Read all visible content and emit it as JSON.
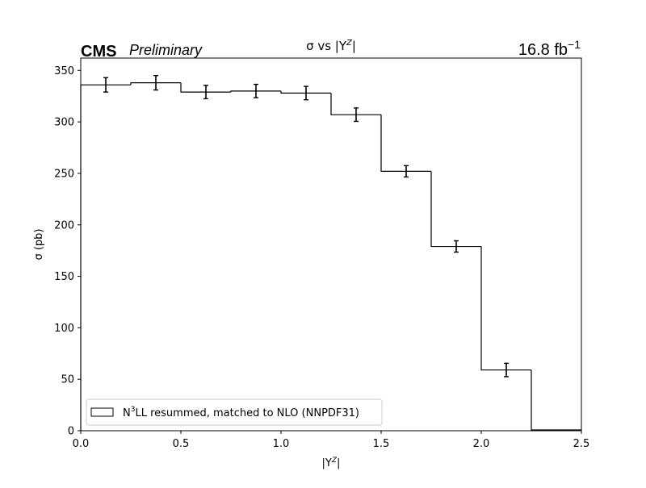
{
  "chart_data": {
    "type": "histogram",
    "header": {
      "experiment": "CMS",
      "status": "Preliminary",
      "luminosity_value": "16.8 fb",
      "luminosity_exponent": "−1"
    },
    "title": {
      "prefix": "σ vs |Y",
      "superscript": "Z",
      "suffix": "|"
    },
    "xlabel": {
      "prefix": "|Y",
      "superscript": "Z",
      "suffix": "|"
    },
    "ylabel": "σ (pb)",
    "xlim": [
      0,
      2.5
    ],
    "ylim": [
      0,
      362
    ],
    "xticks": [
      0.0,
      0.5,
      1.0,
      1.5,
      2.0,
      2.5
    ],
    "xtick_labels": [
      "0.0",
      "0.5",
      "1.0",
      "1.5",
      "2.0",
      "2.5"
    ],
    "yticks": [
      0,
      50,
      100,
      150,
      200,
      250,
      300,
      350
    ],
    "ytick_labels": [
      "0",
      "50",
      "100",
      "150",
      "200",
      "250",
      "300",
      "350"
    ],
    "grid": false,
    "legend_position": "lower-left",
    "legend": {
      "prefix": "N",
      "superscript": "3",
      "suffix": "LL resummed, matched to NLO (NNPDF31)"
    },
    "bin_edges": [
      0.0,
      0.25,
      0.5,
      0.75,
      1.0,
      1.25,
      1.5,
      1.75,
      2.0,
      2.25,
      2.5
    ],
    "values": [
      336,
      338,
      329,
      330,
      328,
      307,
      252,
      179,
      59,
      0.8
    ],
    "errors": [
      7,
      7,
      6.5,
      6.5,
      6.5,
      6.5,
      5.5,
      5.5,
      6.5,
      0
    ],
    "line_color": "#000000"
  }
}
